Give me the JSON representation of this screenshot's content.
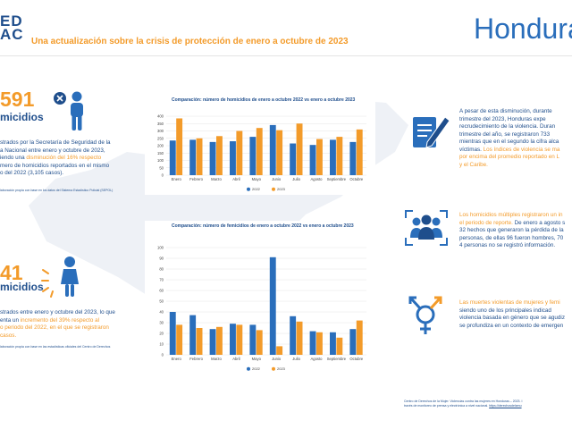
{
  "header": {
    "logo_line1": "ED",
    "logo_line2": "AC",
    "subtitle": "Una actualización sobre la crisis de protección de enero a octubre de 2023",
    "country": "Honduras"
  },
  "homicides": {
    "number": "591",
    "label": "micidios",
    "text_part1": "strados por la Secretaría de Seguridad de la",
    "text_part2": "a Nacional entre enero y octubre de 2023,",
    "text_part3": "iendo una",
    "highlight": "disminución del 16% respecto",
    "text_part4": "mero de homicidios reportados en el mismo",
    "text_part5": "o del 2022 (3,105 casos).",
    "source": "laboración propia con base en los datos del Sistema Estadístico Policial (SEPOL)"
  },
  "femicides": {
    "number": "41",
    "label": "micidios",
    "text_part1": "strados entre enero y octubre del 2023, lo que",
    "text_part2": "enta un",
    "highlight1": "incremento del 39% respecto al",
    "highlight2": "o periodo del 2022, en el que se registraron",
    "highlight3": "casos.",
    "source": "laboración propia con base en las estadísticas oficiales del Centro de Derechos"
  },
  "right": {
    "block1_line1": "A pesar de esta disminución, durante",
    "block1_line2": "trimestre del 2023, Honduras expe",
    "block1_line3": "recrudecimiento de la violencia. Duran",
    "block1_line4": "trimestre del año, se registraron 733",
    "block1_line5": "mientras que en el segundo la cifra alca",
    "block1_line6": "víctimas.",
    "block1_hl1": "Los índices de violencia se ma",
    "block1_hl2": "por encima del promedio reportado en L",
    "block1_hl3": "y el Caribe.",
    "block2_hl1": "Los",
    "block2_hl2": "homicidios múltiples registraron un in",
    "block2_hl3": "el periodo de reporte.",
    "block2_line1": "De enero a agosto s",
    "block2_line2": "32 hechos que generaron la pérdida de la",
    "block2_line3": "personas, de ellas 96 fueron hombres, 70",
    "block2_line4": "4 personas no se registró información.",
    "block3_hl1": "Las",
    "block3_hl2": "muertes violentas de mujeres y femi",
    "block3_line1": "siendo uno de los principales indicad",
    "block3_line2": "violencia basada en género que se agudiz",
    "block3_line3": "se profundiza en un contexto de emergen",
    "footnote_line1": "Centro de Derechos de la Mujer. Violencias contra las mujeres en Honduras – 2023. I",
    "footnote_line2": "través de monitoreo de prensa y electrónica a nivel nacional.",
    "footnote_link": "https://derechosdelamu"
  },
  "icons": {
    "homicide_person": "person-x-icon",
    "femicide_person": "woman-icon",
    "document_pen": "document-pen-icon",
    "group": "group-icon",
    "gender": "gender-icon"
  },
  "colors": {
    "series_2022": "#2a6ebb",
    "series_2023": "#f39b2a",
    "brand_blue": "#1f4e8c",
    "accent_orange": "#f39b2a"
  },
  "chart_data": [
    {
      "type": "bar",
      "title": "Comparación: número de homicidios de enero a  octubre 2022 vs enero a  octubre 2023",
      "categories": [
        "Enero",
        "Febrero",
        "Marzo",
        "Abril",
        "Mayo",
        "Junio",
        "Julio",
        "Agosto",
        "Septiembre",
        "Octubre"
      ],
      "series": [
        {
          "name": "2022",
          "values": [
            235,
            240,
            225,
            230,
            260,
            340,
            215,
            205,
            240,
            225
          ]
        },
        {
          "name": "2023",
          "values": [
            385,
            250,
            265,
            300,
            320,
            305,
            350,
            245,
            260,
            310
          ]
        }
      ],
      "yticks": [
        0,
        50,
        100,
        150,
        200,
        250,
        300,
        350,
        400
      ],
      "ylim": [
        0,
        400
      ],
      "grid": true,
      "legend": "bottom"
    },
    {
      "type": "bar",
      "title": "Comparación: número de femicidios de enero a  octubre 2022 vs enero a  octubre 2023",
      "categories": [
        "Enero",
        "Febrero",
        "Marzo",
        "Abril",
        "Mayo",
        "Junio",
        "Julio",
        "Agosto",
        "Septiembre",
        "Octubre"
      ],
      "series": [
        {
          "name": "2022",
          "values": [
            40,
            37,
            24,
            29,
            28,
            91,
            36,
            22,
            21,
            24
          ]
        },
        {
          "name": "2023",
          "values": [
            28,
            25,
            26,
            28,
            23,
            8,
            31,
            21,
            16,
            32
          ]
        }
      ],
      "yticks": [
        0,
        10,
        20,
        30,
        40,
        50,
        60,
        70,
        80,
        90,
        100
      ],
      "ylim": [
        0,
        100
      ],
      "grid": true,
      "legend": "bottom"
    }
  ]
}
